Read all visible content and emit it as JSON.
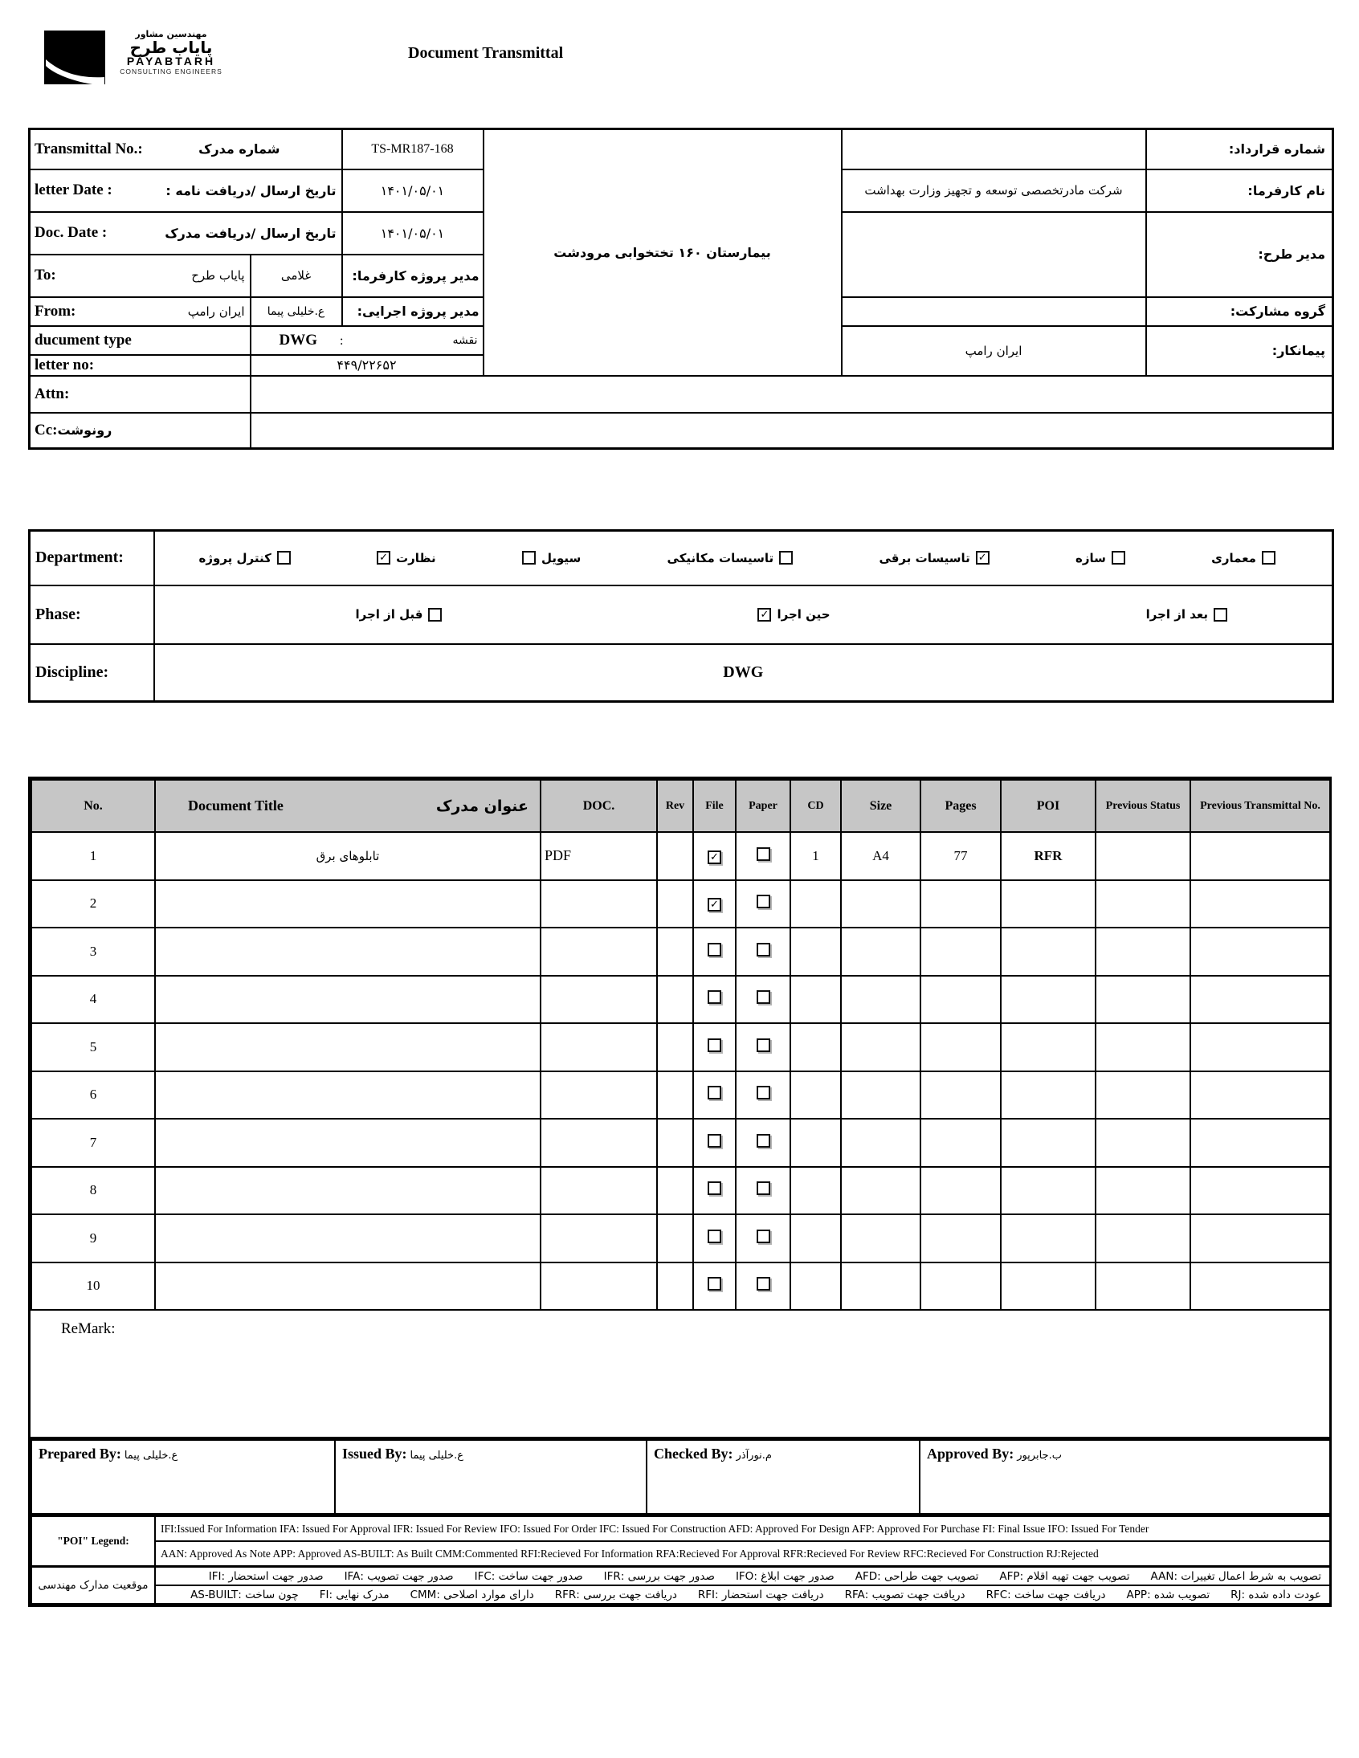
{
  "colors": {
    "paper": "#ffffff",
    "ink": "#000000",
    "table_header_bg": "#c6c6c6"
  },
  "header": {
    "title": "Document Transmittal",
    "logo": {
      "fa_tagline": "مهندسین مشاور",
      "fa_name": "پایاب طرح",
      "en_name": "PAYABTARH",
      "en_tagline": "CONSULTING ENGINEERS"
    }
  },
  "info": {
    "transmittal": {
      "en": "Transmittal No.:",
      "fa": "شماره مدرک",
      "value": "TS-MR187-168"
    },
    "letter_date": {
      "en": "letter Date  :",
      "fa": "تاریخ ارسال /دریافت نامه :",
      "value": "۱۴۰۱/۰۵/۰۱"
    },
    "doc_date": {
      "en": "Doc. Date :",
      "fa": "تاریخ ارسال /دریافت مدرک",
      "value": "۱۴۰۱/۰۵/۰۱"
    },
    "to": {
      "en": "To:",
      "fa": "پایاب طرح",
      "person": "غلامی",
      "role_fa": "مدیر پروژه کارفرما:"
    },
    "from": {
      "en": "From:",
      "fa": "ایران رامپ",
      "person": "ع.خلیلی پیما",
      "role_fa": "مدیر پروژه اجرایی:"
    },
    "doc_type": {
      "en": "ducument type",
      "value": "DWG",
      "colon": ":",
      "fa": "نقشه"
    },
    "letter_no": {
      "en": "letter no:",
      "value": "۴۴۹/۲۲۶۵۲"
    },
    "attn": {
      "en": "Attn:",
      "value": ""
    },
    "cc": {
      "en": "Cc:",
      "fa": "رونوشت",
      "value": ""
    },
    "project_name": "بیمارستان ۱۶۰ تختخوابی مرودشت",
    "contract_no": {
      "label_fa": "شماره قرارداد:",
      "value": ""
    },
    "client": {
      "label_fa": "نام کارفرما:",
      "value": "شرکت مادرتخصصی توسعه و تجهیز وزارت بهداشت"
    },
    "design_manager": {
      "label_fa": "مدیر طرح:",
      "value": ""
    },
    "partnership": {
      "label_fa": "گروه مشارکت:",
      "value": ""
    },
    "contractor": {
      "label_fa": "پیمانکار:",
      "value": "ایران رامپ"
    }
  },
  "classification": {
    "department_label": "Department:",
    "departments": [
      {
        "label": "کنترل پروژه",
        "checked": false,
        "box_first": false
      },
      {
        "label": "نظارت",
        "checked": true,
        "box_first": true
      },
      {
        "label": "سیویل",
        "checked": false,
        "box_first": true
      },
      {
        "label": "تاسیسات مکانیکی",
        "checked": false,
        "box_first": false
      },
      {
        "label": "تاسیسات برقی",
        "checked": true,
        "box_first": false
      },
      {
        "label": "سازه",
        "checked": false,
        "box_first": false
      },
      {
        "label": "معماری",
        "checked": false,
        "box_first": false
      }
    ],
    "phase_label": "Phase:",
    "phases": [
      {
        "label": "قبل از اجرا",
        "checked": false,
        "box_first": false
      },
      {
        "label": "حین اجرا",
        "checked": true,
        "box_first": true
      },
      {
        "label": "بعد از اجرا",
        "checked": false,
        "box_first": false
      }
    ],
    "discipline_label": "Discipline:",
    "discipline_value": "DWG"
  },
  "doc_table": {
    "headers": {
      "no": "No.",
      "title_en": "Document Title",
      "title_fa": "عنوان مدرک",
      "doc": "DOC.",
      "rev": "Rev",
      "file": "File",
      "paper": "Paper",
      "cd": "CD",
      "size": "Size",
      "pages": "Pages",
      "poi": "POI",
      "prev_status": "Previous Status",
      "prev_transmittal": "Previous Transmittal No."
    },
    "rows": [
      {
        "no": "1",
        "title": "تابلوهای برق",
        "doc": "PDF",
        "rev": "",
        "file": true,
        "paper": false,
        "cd": "1",
        "size": "A4",
        "pages": "77",
        "poi": "RFR",
        "prev_status": "",
        "prev_transmittal": ""
      },
      {
        "no": "2",
        "title": "",
        "doc": "",
        "rev": "",
        "file": true,
        "paper": false,
        "cd": "",
        "size": "",
        "pages": "",
        "poi": "",
        "prev_status": "",
        "prev_transmittal": ""
      },
      {
        "no": "3",
        "title": "",
        "doc": "",
        "rev": "",
        "file": false,
        "paper": false,
        "cd": "",
        "size": "",
        "pages": "",
        "poi": "",
        "prev_status": "",
        "prev_transmittal": ""
      },
      {
        "no": "4",
        "title": "",
        "doc": "",
        "rev": "",
        "file": false,
        "paper": false,
        "cd": "",
        "size": "",
        "pages": "",
        "poi": "",
        "prev_status": "",
        "prev_transmittal": ""
      },
      {
        "no": "5",
        "title": "",
        "doc": "",
        "rev": "",
        "file": false,
        "paper": false,
        "cd": "",
        "size": "",
        "pages": "",
        "poi": "",
        "prev_status": "",
        "prev_transmittal": ""
      },
      {
        "no": "6",
        "title": "",
        "doc": "",
        "rev": "",
        "file": false,
        "paper": false,
        "cd": "",
        "size": "",
        "pages": "",
        "poi": "",
        "prev_status": "",
        "prev_transmittal": ""
      },
      {
        "no": "7",
        "title": "",
        "doc": "",
        "rev": "",
        "file": false,
        "paper": false,
        "cd": "",
        "size": "",
        "pages": "",
        "poi": "",
        "prev_status": "",
        "prev_transmittal": ""
      },
      {
        "no": "8",
        "title": "",
        "doc": "",
        "rev": "",
        "file": false,
        "paper": false,
        "cd": "",
        "size": "",
        "pages": "",
        "poi": "",
        "prev_status": "",
        "prev_transmittal": ""
      },
      {
        "no": "9",
        "title": "",
        "doc": "",
        "rev": "",
        "file": false,
        "paper": false,
        "cd": "",
        "size": "",
        "pages": "",
        "poi": "",
        "prev_status": "",
        "prev_transmittal": ""
      },
      {
        "no": "10",
        "title": "",
        "doc": "",
        "rev": "",
        "file": false,
        "paper": false,
        "cd": "",
        "size": "",
        "pages": "",
        "poi": "",
        "prev_status": "",
        "prev_transmittal": ""
      }
    ]
  },
  "remark_label": "ReMark:",
  "signatures": {
    "prepared": {
      "label": "Prepared By:",
      "name": "ع.خلیلی پیما"
    },
    "issued": {
      "label": "Issued By:",
      "name": "ع.خلیلی پیما"
    },
    "checked": {
      "label": "Checked By:",
      "name": "م.نورآذر"
    },
    "approved": {
      "label": "Approved By:",
      "name": "ب.جابرپور"
    }
  },
  "legend": {
    "poi_label": "\"POI\" Legend:",
    "en_line1": "IFI:Issued For Information  IFA: Issued For Approval  IFR: Issued For Review   IFO: Issued For Order  IFC: Issued For Construction AFD: Approved For Design AFP: Approved For Purchase  FI: Final Issue  IFO: Issued For Tender",
    "en_line2": "AAN: Approved As Note  APP: Approved  AS-BUILT: As Built CMM:Commented  RFI:Recieved For Information   RFA:Recieved For Approval   RFR:Recieved For Review  RFC:Recieved For Construction  RJ:Rejected",
    "fa_label": "موقعیت مدارک مهندسی",
    "fa_line1": [
      {
        "abbr": "AAN",
        "fa": "تصویب به شرط اعمال تغییرات"
      },
      {
        "abbr": "AFP",
        "fa": "تصویب جهت تهیه اقلام"
      },
      {
        "abbr": "AFD",
        "fa": "تصویب جهت طراحی"
      },
      {
        "abbr": "IFO",
        "fa": "صدور جهت ابلاغ"
      },
      {
        "abbr": "IFR",
        "fa": "صدور جهت بررسی"
      },
      {
        "abbr": "IFC",
        "fa": "صدور جهت ساخت"
      },
      {
        "abbr": "IFA",
        "fa": "صدور جهت تصویب"
      },
      {
        "abbr": "IFI",
        "fa": "صدور جهت استحضار"
      }
    ],
    "fa_line2": [
      {
        "abbr": "RJ",
        "fa": "عودت داده شده"
      },
      {
        "abbr": "APP",
        "fa": "تصویب شده"
      },
      {
        "abbr": "RFC",
        "fa": "دریافت جهت ساخت"
      },
      {
        "abbr": "RFA",
        "fa": "دریافت جهت تصویب"
      },
      {
        "abbr": "RFI",
        "fa": "دریافت جهت استحضار"
      },
      {
        "abbr": "RFR",
        "fa": "دریافت جهت بررسی"
      },
      {
        "abbr": "CMM",
        "fa": "دارای موارد اصلاحی"
      },
      {
        "abbr": "FI",
        "fa": "مدرک نهایی"
      },
      {
        "abbr": "AS-BUILT",
        "fa": "چون ساخت"
      }
    ]
  }
}
